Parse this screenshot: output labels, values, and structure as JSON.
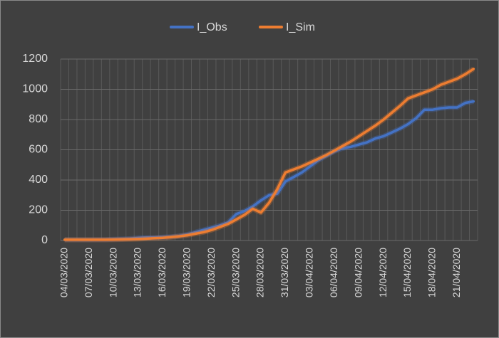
{
  "chart_data": {
    "type": "line",
    "categories": [
      "04/03/2020",
      null,
      null,
      "07/03/2020",
      null,
      null,
      "10/03/2020",
      null,
      null,
      "13/03/2020",
      null,
      null,
      "16/03/2020",
      null,
      null,
      "19/03/2020",
      null,
      null,
      "22/03/2020",
      null,
      null,
      "25/03/2020",
      null,
      null,
      "28/03/2020",
      null,
      null,
      "31/03/2020",
      null,
      null,
      "03/04/2020",
      null,
      null,
      "06/04/2020",
      null,
      null,
      "09/04/2020",
      null,
      null,
      "12/04/2020",
      null,
      null,
      "15/04/2020",
      null,
      null,
      "18/04/2020",
      null,
      null,
      "21/04/2020",
      null,
      null
    ],
    "series": [
      {
        "name": "I_Obs",
        "color": "#4472c4",
        "values": [
          5,
          5,
          5,
          5,
          6,
          6,
          8,
          10,
          12,
          18,
          20,
          20,
          22,
          25,
          30,
          40,
          55,
          70,
          85,
          100,
          120,
          175,
          195,
          225,
          265,
          300,
          310,
          390,
          420,
          450,
          490,
          530,
          560,
          590,
          610,
          620,
          635,
          650,
          675,
          690,
          715,
          740,
          770,
          810,
          865,
          865,
          875,
          880,
          880,
          910,
          920
        ]
      },
      {
        "name": "I_Sim",
        "color": "#ed7d31",
        "values": [
          5,
          5,
          5,
          5,
          5,
          5,
          6,
          7,
          8,
          10,
          12,
          15,
          18,
          22,
          28,
          35,
          45,
          55,
          70,
          90,
          110,
          140,
          170,
          210,
          185,
          250,
          340,
          450,
          470,
          490,
          515,
          540,
          565,
          595,
          625,
          655,
          690,
          725,
          760,
          800,
          845,
          890,
          940,
          960,
          980,
          1000,
          1030,
          1050,
          1070,
          1100,
          1135
        ]
      }
    ],
    "ylim": [
      0,
      1200
    ],
    "yticks": [
      0,
      200,
      400,
      600,
      800,
      1000,
      1200
    ],
    "grid": true,
    "legend": "top"
  }
}
